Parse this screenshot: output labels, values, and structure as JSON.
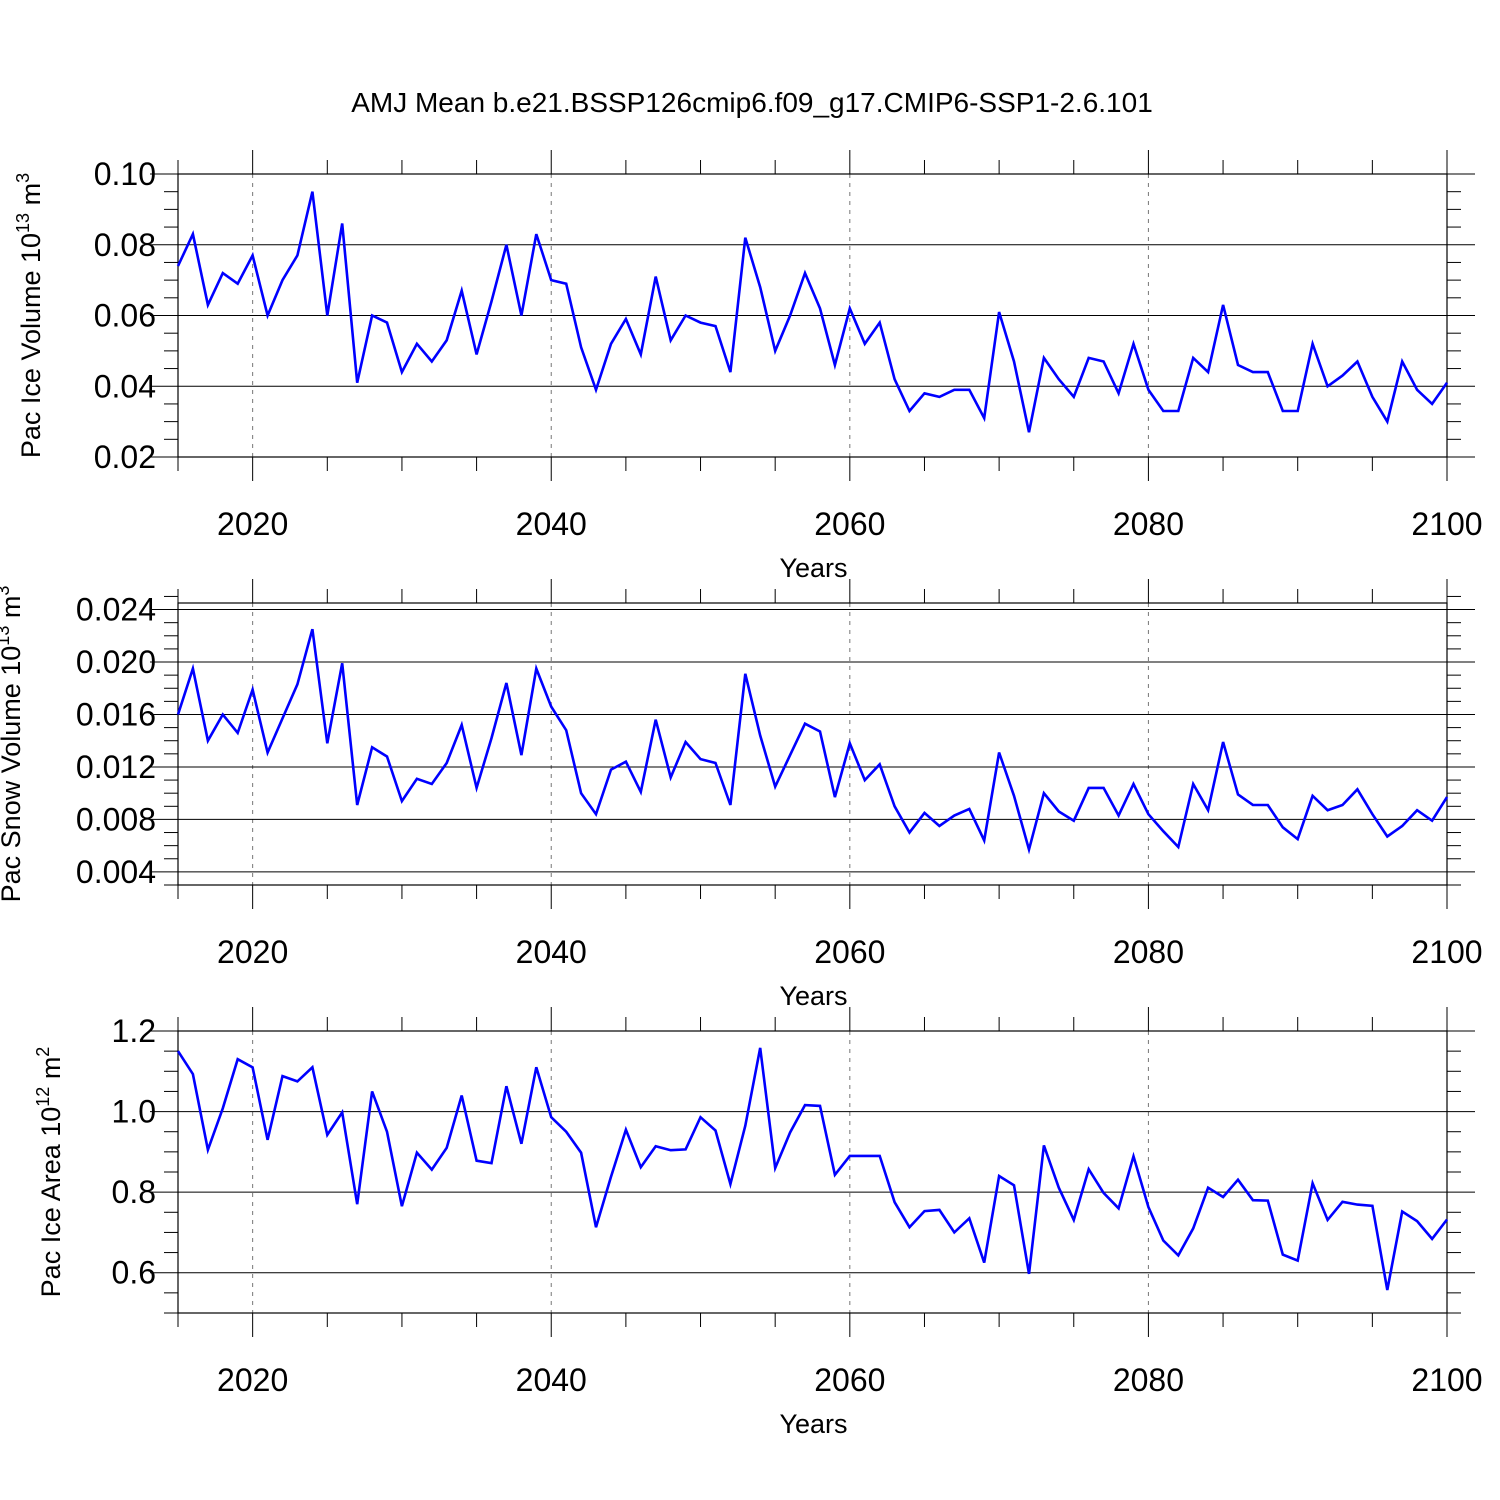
{
  "title": "AMJ Mean b.e21.BSSP126cmip6.f09_g17.CMIP6-SSP1-2.6.101",
  "line_color": "#0000ff",
  "chart_data": [
    {
      "type": "line",
      "xlabel": "Years",
      "ylabel": "Pac Ice Volume 10",
      "ylabel_sup": "13",
      "ylabel_unit": " m",
      "ylabel_unit_sup": "3",
      "xlim": [
        2015,
        2100
      ],
      "ylim": [
        0.02,
        0.1
      ],
      "xticks": [
        2020,
        2040,
        2060,
        2080,
        2100
      ],
      "yticks": [
        0.02,
        0.04,
        0.06,
        0.08,
        0.1
      ],
      "ytick_labels": [
        "0.02",
        "0.04",
        "0.06",
        "0.08",
        "0.10"
      ],
      "yminor_step": 0.005,
      "grid_x": [
        2020,
        2040,
        2060,
        2080
      ],
      "x": [
        2015,
        2016,
        2017,
        2018,
        2019,
        2020,
        2021,
        2022,
        2023,
        2024,
        2025,
        2026,
        2027,
        2028,
        2029,
        2030,
        2031,
        2032,
        2033,
        2034,
        2035,
        2036,
        2037,
        2038,
        2039,
        2040,
        2041,
        2042,
        2043,
        2044,
        2045,
        2046,
        2047,
        2048,
        2049,
        2050,
        2051,
        2052,
        2053,
        2054,
        2055,
        2056,
        2057,
        2058,
        2059,
        2060,
        2061,
        2062,
        2063,
        2064,
        2065,
        2066,
        2067,
        2068,
        2069,
        2070,
        2071,
        2072,
        2073,
        2074,
        2075,
        2076,
        2077,
        2078,
        2079,
        2080,
        2081,
        2082,
        2083,
        2084,
        2085,
        2086,
        2087,
        2088,
        2089,
        2090,
        2091,
        2092,
        2093,
        2094,
        2095,
        2096,
        2097,
        2098,
        2099,
        2100
      ],
      "y": [
        0.074,
        0.083,
        0.063,
        0.072,
        0.069,
        0.077,
        0.06,
        0.07,
        0.077,
        0.095,
        0.06,
        0.086,
        0.041,
        0.06,
        0.058,
        0.044,
        0.052,
        0.047,
        0.053,
        0.067,
        0.049,
        0.064,
        0.08,
        0.06,
        0.083,
        0.07,
        0.069,
        0.051,
        0.039,
        0.052,
        0.059,
        0.049,
        0.071,
        0.053,
        0.06,
        0.058,
        0.057,
        0.044,
        0.082,
        0.068,
        0.05,
        0.06,
        0.072,
        0.062,
        0.046,
        0.062,
        0.052,
        0.058,
        0.042,
        0.033,
        0.038,
        0.037,
        0.039,
        0.039,
        0.031,
        0.061,
        0.047,
        0.027,
        0.048,
        0.042,
        0.037,
        0.048,
        0.047,
        0.038,
        0.052,
        0.039,
        0.033,
        0.033,
        0.048,
        0.044,
        0.063,
        0.046,
        0.044,
        0.044,
        0.033,
        0.033,
        0.052,
        0.04,
        0.043,
        0.047,
        0.037,
        0.03,
        0.047,
        0.039,
        0.035,
        0.041
      ]
    },
    {
      "type": "line",
      "xlabel": "Years",
      "ylabel": "Pac Snow Volume 10",
      "ylabel_sup": "13",
      "ylabel_unit": " m",
      "ylabel_unit_sup": "3",
      "xlim": [
        2015,
        2100
      ],
      "ylim": [
        0.003,
        0.0245
      ],
      "xticks": [
        2020,
        2040,
        2060,
        2080,
        2100
      ],
      "yticks": [
        0.004,
        0.008,
        0.012,
        0.016,
        0.02,
        0.024
      ],
      "ytick_labels": [
        "0.004",
        "0.008",
        "0.012",
        "0.016",
        "0.020",
        "0.024"
      ],
      "yminor_step": 0.001,
      "grid_x": [
        2020,
        2040,
        2060,
        2080
      ],
      "x": [
        2015,
        2016,
        2017,
        2018,
        2019,
        2020,
        2021,
        2022,
        2023,
        2024,
        2025,
        2026,
        2027,
        2028,
        2029,
        2030,
        2031,
        2032,
        2033,
        2034,
        2035,
        2036,
        2037,
        2038,
        2039,
        2040,
        2041,
        2042,
        2043,
        2044,
        2045,
        2046,
        2047,
        2048,
        2049,
        2050,
        2051,
        2052,
        2053,
        2054,
        2055,
        2056,
        2057,
        2058,
        2059,
        2060,
        2061,
        2062,
        2063,
        2064,
        2065,
        2066,
        2067,
        2068,
        2069,
        2070,
        2071,
        2072,
        2073,
        2074,
        2075,
        2076,
        2077,
        2078,
        2079,
        2080,
        2081,
        2082,
        2083,
        2084,
        2085,
        2086,
        2087,
        2088,
        2089,
        2090,
        2091,
        2092,
        2093,
        2094,
        2095,
        2096,
        2097,
        2098,
        2099,
        2100
      ],
      "y": [
        0.016,
        0.0195,
        0.014,
        0.016,
        0.0146,
        0.0179,
        0.0131,
        0.0157,
        0.0183,
        0.0225,
        0.0138,
        0.0199,
        0.0091,
        0.0135,
        0.0128,
        0.0094,
        0.0111,
        0.0107,
        0.0123,
        0.0152,
        0.0104,
        0.0142,
        0.0184,
        0.0129,
        0.0195,
        0.0166,
        0.0148,
        0.01,
        0.0084,
        0.0118,
        0.0124,
        0.0101,
        0.0156,
        0.0112,
        0.0139,
        0.0126,
        0.0123,
        0.0091,
        0.0191,
        0.0144,
        0.0105,
        0.0129,
        0.0153,
        0.0147,
        0.0097,
        0.0138,
        0.011,
        0.0122,
        0.009,
        0.007,
        0.0085,
        0.0075,
        0.0083,
        0.0088,
        0.0064,
        0.0131,
        0.0098,
        0.0057,
        0.01,
        0.0086,
        0.0079,
        0.0104,
        0.0104,
        0.0083,
        0.0107,
        0.0084,
        0.0071,
        0.0059,
        0.0107,
        0.0087,
        0.0139,
        0.0099,
        0.0091,
        0.0091,
        0.0074,
        0.0065,
        0.0098,
        0.0087,
        0.0091,
        0.0103,
        0.0084,
        0.0067,
        0.0075,
        0.0087,
        0.0079,
        0.0097
      ]
    },
    {
      "type": "line",
      "xlabel": "Years",
      "ylabel": "Pac Ice Area 10",
      "ylabel_sup": "12",
      "ylabel_unit": " m",
      "ylabel_unit_sup": "2",
      "xlim": [
        2015,
        2100
      ],
      "ylim": [
        0.5,
        1.2
      ],
      "xticks": [
        2020,
        2040,
        2060,
        2080,
        2100
      ],
      "yticks": [
        0.6,
        0.8,
        1.0,
        1.2
      ],
      "ytick_labels": [
        "0.6",
        "0.8",
        "1.0",
        "1.2"
      ],
      "yminor_step": 0.05,
      "grid_x": [
        2020,
        2040,
        2060,
        2080
      ],
      "x": [
        2015,
        2016,
        2017,
        2018,
        2019,
        2020,
        2021,
        2022,
        2023,
        2024,
        2025,
        2026,
        2027,
        2028,
        2029,
        2030,
        2031,
        2032,
        2033,
        2034,
        2035,
        2036,
        2037,
        2038,
        2039,
        2040,
        2041,
        2042,
        2043,
        2044,
        2045,
        2046,
        2047,
        2048,
        2049,
        2050,
        2051,
        2052,
        2053,
        2054,
        2055,
        2056,
        2057,
        2058,
        2059,
        2060,
        2061,
        2062,
        2063,
        2064,
        2065,
        2066,
        2067,
        2068,
        2069,
        2070,
        2071,
        2072,
        2073,
        2074,
        2075,
        2076,
        2077,
        2078,
        2079,
        2080,
        2081,
        2082,
        2083,
        2084,
        2085,
        2086,
        2087,
        2088,
        2089,
        2090,
        2091,
        2092,
        2093,
        2094,
        2095,
        2096,
        2097,
        2098,
        2099,
        2100
      ],
      "y": [
        1.15,
        1.093,
        0.905,
        1.008,
        1.13,
        1.11,
        0.93,
        1.088,
        1.075,
        1.11,
        0.942,
        0.998,
        0.77,
        1.05,
        0.95,
        0.765,
        0.898,
        0.856,
        0.91,
        1.04,
        0.878,
        0.872,
        1.063,
        0.92,
        1.11,
        0.986,
        0.95,
        0.898,
        0.713,
        0.838,
        0.955,
        0.862,
        0.914,
        0.904,
        0.906,
        0.986,
        0.953,
        0.82,
        0.965,
        1.158,
        0.86,
        0.948,
        1.016,
        1.014,
        0.843,
        0.89,
        0.89,
        0.89,
        0.775,
        0.713,
        0.753,
        0.756,
        0.7,
        0.735,
        0.625,
        0.84,
        0.817,
        0.597,
        0.916,
        0.811,
        0.731,
        0.857,
        0.798,
        0.76,
        0.889,
        0.763,
        0.68,
        0.643,
        0.71,
        0.811,
        0.788,
        0.831,
        0.78,
        0.779,
        0.645,
        0.63,
        0.822,
        0.731,
        0.776,
        0.769,
        0.766,
        0.557,
        0.752,
        0.728,
        0.684,
        0.732
      ]
    }
  ]
}
